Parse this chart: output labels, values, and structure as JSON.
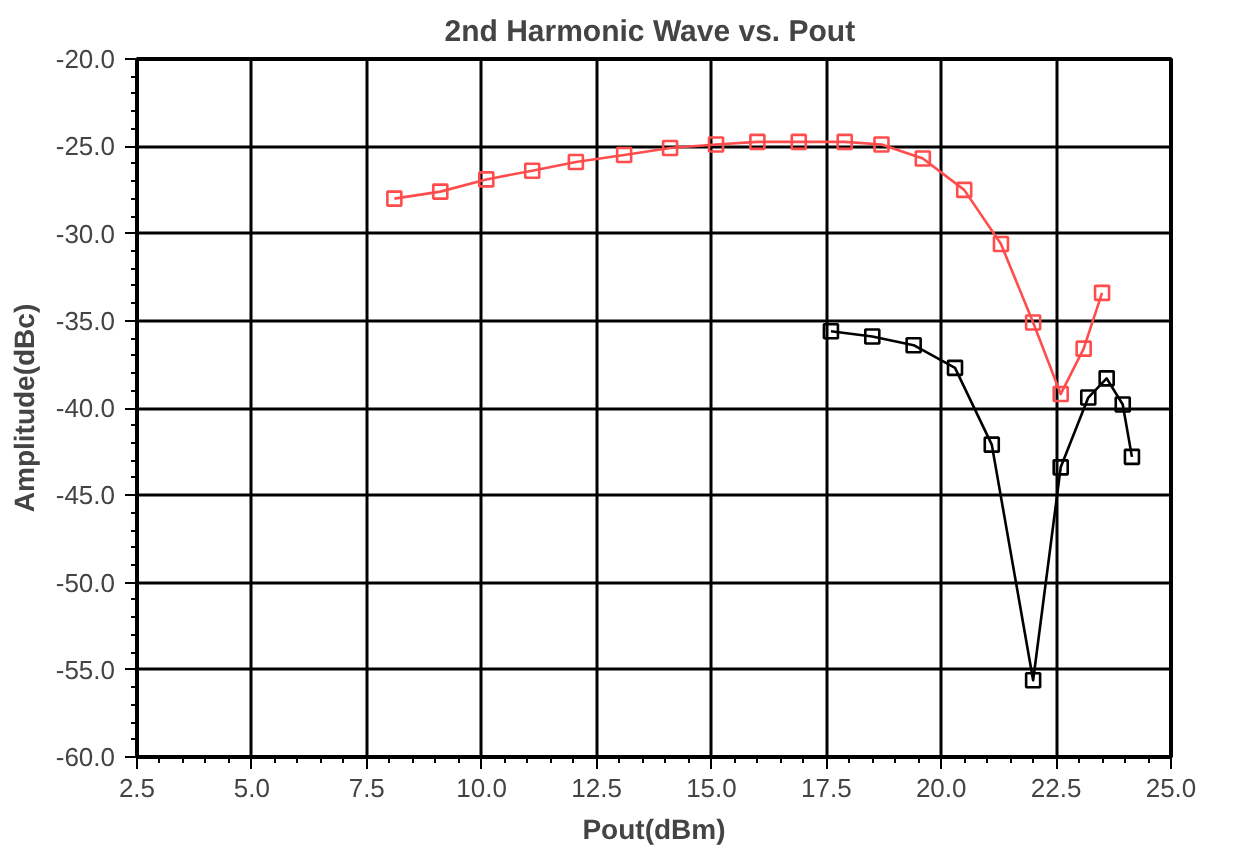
{
  "chart_data": {
    "type": "line",
    "title": "2nd Harmonic Wave  vs. Pout",
    "xlabel": "Pout(dBm)",
    "ylabel": "Amplitude(dBc)",
    "xlim": [
      2.5,
      25.0
    ],
    "xticks": [
      {
        "value": 2.5,
        "label": "2.5"
      },
      {
        "value": 5,
        "label": "5.0"
      },
      {
        "value": 7.5,
        "label": "7.5"
      },
      {
        "value": 10,
        "label": "10.0"
      },
      {
        "value": 12.5,
        "label": "12.5"
      },
      {
        "value": 15,
        "label": "15.0"
      },
      {
        "value": 17.5,
        "label": "17.5"
      },
      {
        "value": 20,
        "label": "20.0"
      },
      {
        "value": 22.5,
        "label": "22.5"
      },
      {
        "value": 25,
        "label": "25.0"
      }
    ],
    "ylim": [
      -60.0,
      -20.0
    ],
    "yticks": [
      {
        "value": -60,
        "label": "-60.0"
      },
      {
        "value": -55,
        "label": "-55.0"
      },
      {
        "value": -50,
        "label": "-50.0"
      },
      {
        "value": -45,
        "label": "-45.0"
      },
      {
        "value": -40,
        "label": "-40.0"
      },
      {
        "value": -35,
        "label": "-35.0"
      },
      {
        "value": -30,
        "label": "-30.0"
      },
      {
        "value": -25,
        "label": "-25.0"
      },
      {
        "value": -20,
        "label": "-20.0"
      }
    ],
    "grid": true,
    "marker": "square",
    "line_style": "solid",
    "series": [
      {
        "color": "#ff4d4d",
        "x": [
          8.1,
          9.1,
          10.1,
          11.1,
          12.05,
          13.1,
          14.1,
          15.1,
          16.0,
          16.9,
          17.9,
          18.7,
          19.6,
          20.5,
          21.3,
          22.0,
          22.6,
          23.1,
          23.5
        ],
        "values": [
          -28.0,
          -27.6,
          -26.9,
          -26.4,
          -25.9,
          -25.5,
          -25.1,
          -24.9,
          -24.75,
          -24.75,
          -24.75,
          -24.9,
          -25.7,
          -27.5,
          -30.6,
          -35.1,
          -39.2,
          -36.6,
          -33.4
        ]
      },
      {
        "color": "#000000",
        "x": [
          17.6,
          18.5,
          19.4,
          20.3,
          21.1,
          22.0,
          22.6,
          23.2,
          23.6,
          23.95,
          24.15
        ],
        "values": [
          -35.6,
          -35.9,
          -36.4,
          -37.7,
          -42.1,
          -55.6,
          -43.4,
          -39.4,
          -38.3,
          -39.8,
          -42.8
        ]
      }
    ]
  }
}
